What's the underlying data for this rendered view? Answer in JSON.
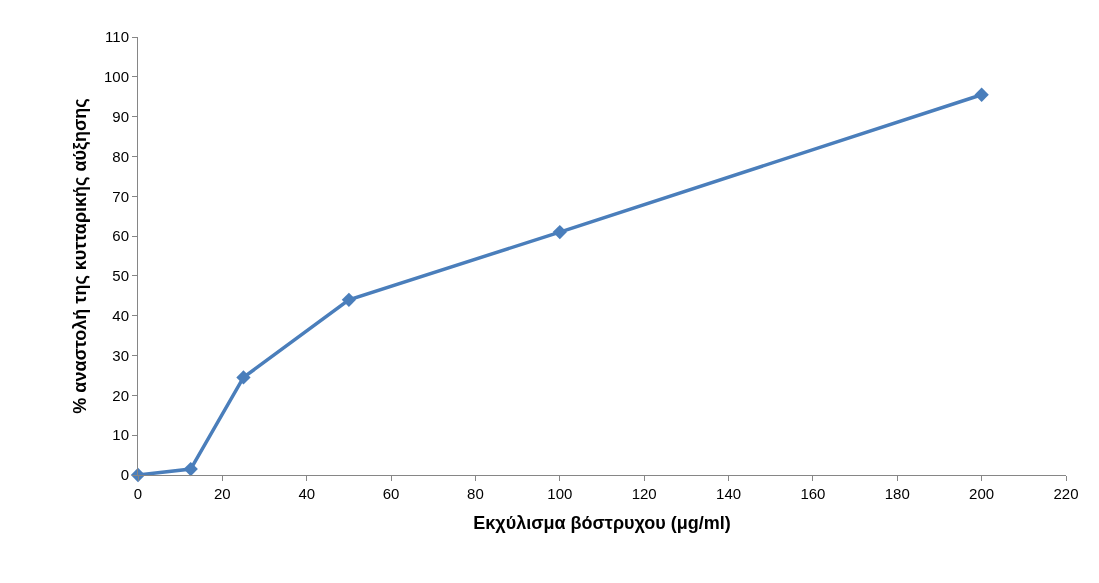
{
  "chart_data": {
    "type": "line",
    "xlabel": "Εκχύλισμα βόστρυχου (μg/ml)",
    "ylabel": "% αναστολή της κυτταρικής αύξησης",
    "x": [
      0,
      12.5,
      25,
      50,
      100,
      200
    ],
    "series": [
      {
        "color": "#4a7ebb",
        "values": [
          0,
          1.5,
          24.5,
          44,
          61,
          95.5
        ]
      }
    ],
    "xlim": [
      0,
      220
    ],
    "xticks": [
      0,
      20,
      40,
      60,
      80,
      100,
      120,
      140,
      160,
      180,
      200,
      220
    ],
    "ylim": [
      0,
      110
    ],
    "yticks": [
      0,
      10,
      20,
      30,
      40,
      50,
      60,
      70,
      80,
      90,
      100,
      110
    ],
    "legend": false,
    "marker": "diamond",
    "line_style": "solid"
  }
}
